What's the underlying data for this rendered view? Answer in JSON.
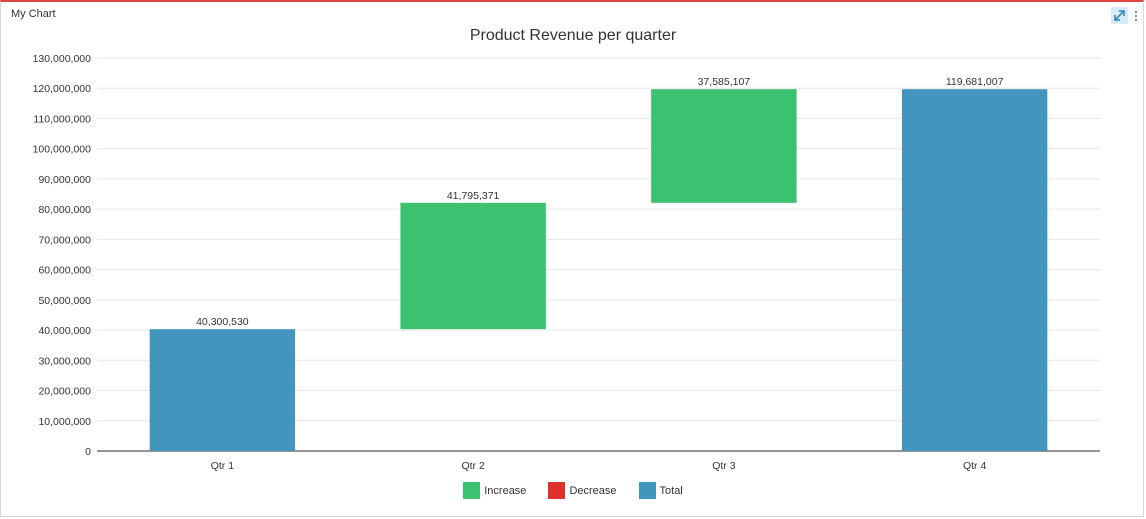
{
  "panel": {
    "title": "My Chart"
  },
  "icons": {
    "expand": "expand-icon",
    "more": "more-vertical-icon"
  },
  "colors": {
    "increase": "#3cc171",
    "decrease": "#e0302b",
    "total": "#4296bd",
    "border_accent": "#e0463f"
  },
  "chart_data": {
    "type": "bar",
    "subtype": "waterfall",
    "title": "Product Revenue per quarter",
    "xlabel": "",
    "ylabel": "",
    "ylim": [
      0,
      130000000
    ],
    "ytick_step": 10000000,
    "ytick_labels": [
      "0",
      "10,000,000",
      "20,000,000",
      "30,000,000",
      "40,000,000",
      "50,000,000",
      "60,000,000",
      "70,000,000",
      "80,000,000",
      "90,000,000",
      "100,000,000",
      "110,000,000",
      "120,000,000",
      "130,000,000"
    ],
    "grid": true,
    "legend_position": "bottom",
    "categories": [
      "Qtr 1",
      "Qtr 2",
      "Qtr 3",
      "Qtr 4"
    ],
    "bars": [
      {
        "category": "Qtr 1",
        "kind": "total",
        "start": 0,
        "end": 40300530,
        "label": "40,300,530"
      },
      {
        "category": "Qtr 2",
        "kind": "increase",
        "start": 40300530,
        "end": 82095901,
        "label": "41,795,371"
      },
      {
        "category": "Qtr 3",
        "kind": "increase",
        "start": 82095901,
        "end": 119681008,
        "label": "37,585,107"
      },
      {
        "category": "Qtr 4",
        "kind": "total",
        "start": 0,
        "end": 119681007,
        "label": "119,681,007"
      }
    ],
    "legend": [
      {
        "key": "increase",
        "label": "Increase"
      },
      {
        "key": "decrease",
        "label": "Decrease"
      },
      {
        "key": "total",
        "label": "Total"
      }
    ]
  }
}
